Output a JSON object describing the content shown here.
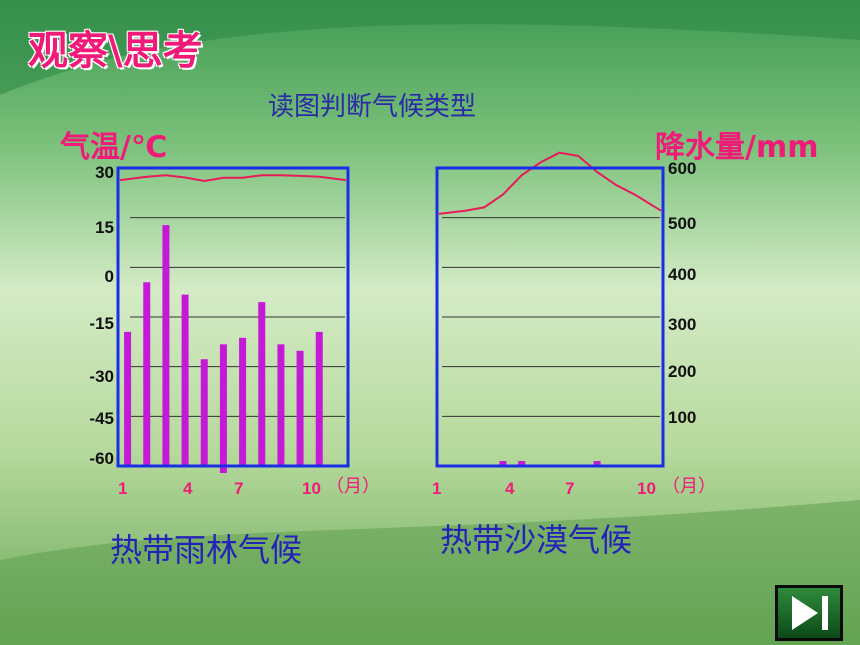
{
  "slide": {
    "title": "观察\\思考",
    "subtitle": "读图判断气候类型"
  },
  "left_axis_title": "气温/℃",
  "right_axis_title": "降水量/mm",
  "month_unit": "（月）",
  "colors": {
    "temperature_line": "#e81a5a",
    "precipitation_bars": "#c41ad8",
    "frame": "#1a2ee8",
    "labels_red": "#f01a78",
    "captions_blue": "#2323b8"
  },
  "chart_data": [
    {
      "type": "bar",
      "title": "热带雨林气候",
      "xlabel": "（月）",
      "x_tick_labels": [
        "1",
        "4",
        "7",
        "10"
      ],
      "x": [
        1,
        2,
        3,
        4,
        5,
        6,
        7,
        8,
        9,
        10,
        11,
        12
      ],
      "temperature_axis": {
        "label": "气温/℃",
        "ticks": [
          "30",
          "15",
          "0",
          "-15",
          "-30",
          "-45",
          "-60"
        ],
        "range": [
          -60,
          30
        ]
      },
      "precipitation_axis": {
        "label": "降水量/mm",
        "ticks": [
          "600",
          "500",
          "400",
          "300",
          "200",
          "100"
        ],
        "range": [
          0,
          600
        ]
      },
      "series": [
        {
          "kind": "line",
          "axis": "temperature",
          "values": [
            27.5,
            28.5,
            29,
            28.3,
            27.2,
            28.2,
            28.2,
            29,
            29,
            28.8,
            28.5,
            27.5
          ]
        },
        {
          "kind": "bar",
          "axis": "precipitation",
          "values": [
            270,
            370,
            485,
            345,
            215,
            245,
            258,
            330,
            245,
            232,
            270,
            0
          ]
        }
      ]
    },
    {
      "type": "bar",
      "title": "热带沙漠气候",
      "xlabel": "（月）",
      "x_tick_labels": [
        "1",
        "4",
        "7",
        "10"
      ],
      "x": [
        1,
        2,
        3,
        4,
        5,
        6,
        7,
        8,
        9,
        10,
        11,
        12
      ],
      "temperature_axis": {
        "label": "气温/℃",
        "ticks": [
          "30",
          "15",
          "0",
          "-15",
          "-30",
          "-45",
          "-60"
        ],
        "range": [
          -60,
          30
        ]
      },
      "precipitation_axis": {
        "label": "降水量/mm",
        "ticks": [
          "600",
          "500",
          "400",
          "300",
          "200",
          "100"
        ],
        "range": [
          0,
          600
        ]
      },
      "series": [
        {
          "kind": "line",
          "axis": "temperature",
          "values": [
            17,
            18,
            19,
            23,
            29,
            33,
            36,
            35,
            30,
            26,
            23,
            18
          ]
        },
        {
          "kind": "bar",
          "axis": "precipitation",
          "values": [
            0,
            0,
            0,
            2,
            2,
            0,
            0,
            0,
            2,
            0,
            0,
            0
          ]
        }
      ]
    }
  ]
}
